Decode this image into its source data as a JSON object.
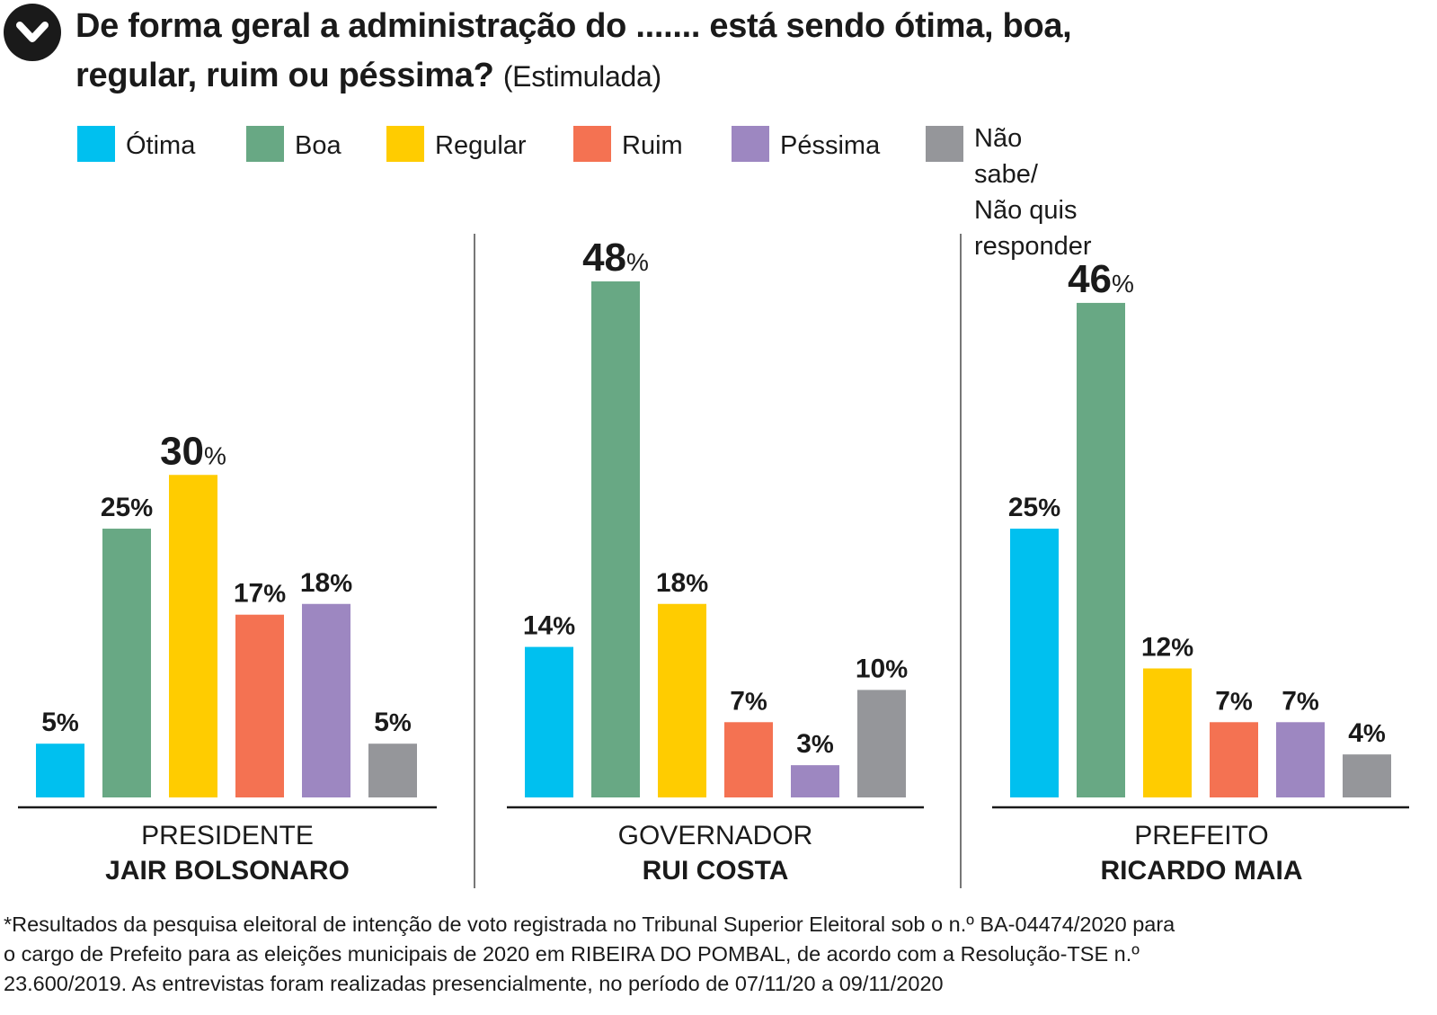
{
  "title": {
    "main": "De forma geral a administração do ....... está sendo ótima, boa, regular, ruim ou péssima?",
    "sub": "(Estimulada)",
    "icon": "chevron-down-icon"
  },
  "legend": [
    {
      "label": "Ótima",
      "color": "#00c0ef"
    },
    {
      "label": "Boa",
      "color": "#68a884"
    },
    {
      "label": "Regular",
      "color": "#ffcc00"
    },
    {
      "label": "Ruim",
      "color": "#f47252"
    },
    {
      "label": "Péssima",
      "color": "#9d87c1"
    },
    {
      "label": "Não sabe/\nNão quis responder",
      "color": "#95969a"
    }
  ],
  "chart_data": {
    "type": "bar",
    "series_names": [
      "Ótima",
      "Boa",
      "Regular",
      "Ruim",
      "Péssima",
      "Não sabe/ Não quis responder"
    ],
    "colors": [
      "#00c0ef",
      "#68a884",
      "#ffcc00",
      "#f47252",
      "#9d87c1",
      "#95969a"
    ],
    "ylim": [
      0,
      48
    ],
    "unit": "%",
    "groups": [
      {
        "role": "PRESIDENTE",
        "name": "JAIR BOLSONARO",
        "values": [
          5,
          25,
          30,
          17,
          18,
          5
        ],
        "labels": [
          "5%",
          "25%",
          "30%",
          "17%",
          "18%",
          "5%"
        ]
      },
      {
        "role": "GOVERNADOR",
        "name": "RUI COSTA",
        "values": [
          14,
          48,
          18,
          7,
          3,
          10
        ],
        "labels": [
          "14%",
          "48%",
          "18%",
          "7%",
          "3%",
          "10%"
        ]
      },
      {
        "role": "PREFEITO",
        "name": "RICARDO MAIA",
        "values": [
          25,
          46,
          12,
          7,
          7,
          4
        ],
        "labels": [
          "25%",
          "46%",
          "12%",
          "7%",
          "7%",
          "4%"
        ]
      }
    ]
  },
  "footnote": "*Resultados da pesquisa eleitoral de intenção de voto registrada no Tribunal Superior Eleitoral sob o n.º BA-04474/2020 para\no cargo de Prefeito para as eleições municipais de 2020 em RIBEIRA DO POMBAL, de acordo com a Resolução-TSE n.º\n23.600/2019. As entrevistas foram realizadas presencialmente, no período de 07/11/20 a 09/11/2020"
}
